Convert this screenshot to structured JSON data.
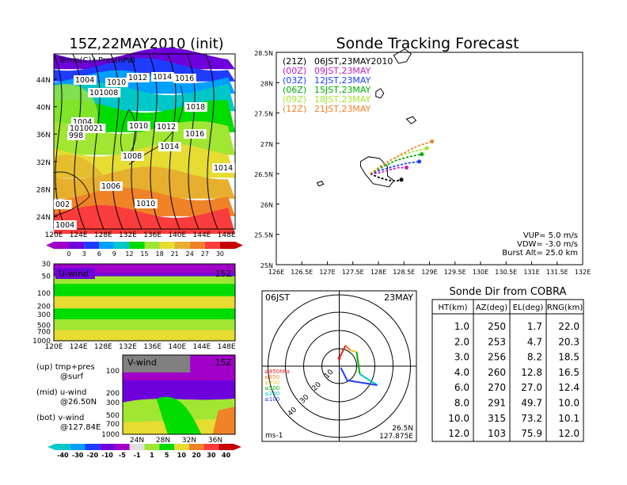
{
  "colors": {
    "palette_temp": [
      "#a000c8",
      "#6e00dc",
      "#1e3cff",
      "#00a0ff",
      "#00c8c8",
      "#00dc00",
      "#a0e632",
      "#e6dc32",
      "#e6af2d",
      "#f08228",
      "#fa3c3c",
      "#c80000"
    ],
    "palette_wind": [
      "#00c8c8",
      "#00a0ff",
      "#1e3cff",
      "#6e00dc",
      "#a000c8",
      "#e0e0e0",
      "#a0e632",
      "#00dc00",
      "#e6dc32",
      "#f08228",
      "#fa3c3c",
      "#c80000"
    ],
    "traj": [
      "#000000",
      "#c020c0",
      "#2040ff",
      "#00b000",
      "#a0e632",
      "#f08228"
    ]
  },
  "map_panel": {
    "title": "15Z,22MAY2010 (init)",
    "label": "Temp(C)+Pres(hPa)",
    "lat_labels": [
      "44N",
      "40N",
      "36N",
      "32N",
      "28N",
      "24N"
    ],
    "lon_labels": [
      "120E",
      "124E",
      "128E",
      "132E",
      "136E",
      "140E",
      "144E",
      "148E"
    ],
    "colorbar_labels": [
      "0",
      "3",
      "6",
      "9",
      "12",
      "15",
      "18",
      "21",
      "24",
      "27",
      "30"
    ],
    "pressure_labels": [
      {
        "t": "1004",
        "k": "a"
      },
      {
        "t": "1010",
        "k": "b"
      },
      {
        "t": "1012",
        "k": "c"
      },
      {
        "t": "1014",
        "k": "d"
      },
      {
        "t": "1016",
        "k": "e"
      },
      {
        "t": "101008",
        "k": "f"
      },
      {
        "t": "1018",
        "k": "g"
      },
      {
        "t": "1004",
        "k": "h"
      },
      {
        "t": "1010021",
        "k": "i"
      },
      {
        "t": "998",
        "k": "j"
      },
      {
        "t": "1010",
        "k": "k"
      },
      {
        "t": "1012",
        "k": "l"
      },
      {
        "t": "1016",
        "k": "m"
      },
      {
        "t": "1014",
        "k": "n"
      },
      {
        "t": "1008",
        "k": "o"
      },
      {
        "t": "1014",
        "k": "p"
      },
      {
        "t": "1006",
        "k": "q"
      },
      {
        "t": "1010",
        "k": "r"
      },
      {
        "t": "002",
        "k": "s"
      },
      {
        "t": "1004",
        "k": "t"
      }
    ]
  },
  "uwind_panel": {
    "label": "U-wind",
    "time": "15Z",
    "levels": [
      "30",
      "50",
      "100",
      "200",
      "300",
      "500",
      "700",
      "1000"
    ],
    "lon_labels": [
      "120E",
      "124E",
      "128E",
      "132E",
      "136E",
      "140E",
      "144E",
      "148E"
    ]
  },
  "vwind_panel": {
    "label": "V-wind",
    "time": "15Z",
    "levels": [
      "100",
      "200",
      "300",
      "500",
      "700",
      "1000"
    ],
    "lat_labels": [
      "24N",
      "28N",
      "32N",
      "36N"
    ],
    "colorbar_labels": [
      "-40",
      "-30",
      "-20",
      "-10",
      "-5",
      "-1",
      "1",
      "5",
      "10",
      "20",
      "30",
      "40"
    ]
  },
  "legend_notes": [
    {
      "k": "(up)",
      "a": "tmp+pres",
      "b": "@surf"
    },
    {
      "k": "(mid)",
      "a": "u-wind",
      "b": "@26.50N"
    },
    {
      "k": "(bot)",
      "a": "v-wind",
      "b": "@127.84E"
    }
  ],
  "tracking": {
    "title": "Sonde Tracking Forecast",
    "legend": [
      {
        "code": "(21Z)",
        "time": "06JST,23MAY2010"
      },
      {
        "code": "(00Z)",
        "time": "09JST,23MAY"
      },
      {
        "code": "(03Z)",
        "time": "12JST,23MAY"
      },
      {
        "code": "(06Z)",
        "time": "15JST,23MAY"
      },
      {
        "code": "(09Z)",
        "time": "18JST,23MAY"
      },
      {
        "code": "(12Z)",
        "time": "21JST,23MAY"
      }
    ],
    "params": [
      "VUP= 5.0 m/s",
      "VDW= -3.0 m/s",
      "Burst Alt= 25.0 km"
    ],
    "lat_labels": [
      "28.5N",
      "28N",
      "27.5N",
      "27N",
      "26.5N",
      "26N",
      "25.5N",
      "25N"
    ],
    "lon_labels": [
      "126E",
      "126.5E",
      "127E",
      "127.5E",
      "128E",
      "128.5E",
      "129E",
      "129.5E",
      "130E",
      "130.5E",
      "131E",
      "131.5E",
      "132E"
    ]
  },
  "chart_data": [
    {
      "type": "line",
      "title": "Sonde Tracking Forecast",
      "xlim": [
        126,
        132
      ],
      "ylim": [
        25,
        28.5
      ],
      "series": [
        {
          "name": "06JST,23MAY2010",
          "x": [
            127.84,
            128.0,
            128.2,
            128.35,
            128.45
          ],
          "y": [
            26.5,
            26.44,
            26.39,
            26.38,
            26.4
          ]
        },
        {
          "name": "09JST,23MAY",
          "x": [
            127.84,
            128.0,
            128.2,
            128.4,
            128.55
          ],
          "y": [
            26.5,
            26.51,
            26.56,
            26.6,
            26.6
          ]
        },
        {
          "name": "12JST,23MAY",
          "x": [
            127.84,
            128.05,
            128.3,
            128.55,
            128.8
          ],
          "y": [
            26.5,
            26.56,
            26.62,
            26.67,
            26.7
          ]
        },
        {
          "name": "15JST,23MAY",
          "x": [
            127.84,
            128.1,
            128.35,
            128.6,
            128.85
          ],
          "y": [
            26.5,
            26.62,
            26.72,
            26.78,
            26.82
          ]
        },
        {
          "name": "18JST,23MAY",
          "x": [
            127.84,
            128.1,
            128.4,
            128.7,
            128.95
          ],
          "y": [
            26.5,
            26.66,
            26.79,
            26.87,
            26.92
          ]
        },
        {
          "name": "21JST,23MAY",
          "x": [
            127.84,
            128.15,
            128.45,
            128.75,
            129.05
          ],
          "y": [
            26.5,
            26.68,
            26.82,
            26.95,
            27.03
          ]
        }
      ]
    },
    {
      "type": "table",
      "title": "Sonde Dir from COBRA",
      "columns": [
        "HT(km)",
        "AZ(deg)",
        "EL(deg)",
        "RNG(km)"
      ],
      "rows": [
        [
          "1.0",
          "250",
          "1.7",
          "22.0"
        ],
        [
          "2.0",
          "253",
          "4.7",
          "20.3"
        ],
        [
          "3.0",
          "256",
          "8.2",
          "18.5"
        ],
        [
          "4.0",
          "260",
          "12.8",
          "16.5"
        ],
        [
          "6.0",
          "270",
          "27.0",
          "12.4"
        ],
        [
          "8.0",
          "291",
          "49.7",
          "10.0"
        ],
        [
          "10.0",
          "315",
          "73.2",
          "10.1"
        ],
        [
          "12.0",
          "103",
          "75.9",
          "12.0"
        ]
      ]
    }
  ],
  "polar": {
    "time": "06JST",
    "date": "23MAY",
    "ring_labels": [
      "10",
      "20",
      "30",
      "40"
    ],
    "level_legend": [
      {
        "t": "≥850hPa",
        "c": "#e02020"
      },
      {
        "t": "≤850",
        "c": "#f08228"
      },
      {
        "t": "≤700",
        "c": "#e6c832"
      },
      {
        "t": "≤500",
        "c": "#00b000"
      },
      {
        "t": "≤250",
        "c": "#00c8c8"
      },
      {
        "t": "≤100",
        "c": "#2040ff"
      }
    ],
    "unit": "ms-1",
    "loc1": "26.5N",
    "loc2": "127.875E"
  }
}
